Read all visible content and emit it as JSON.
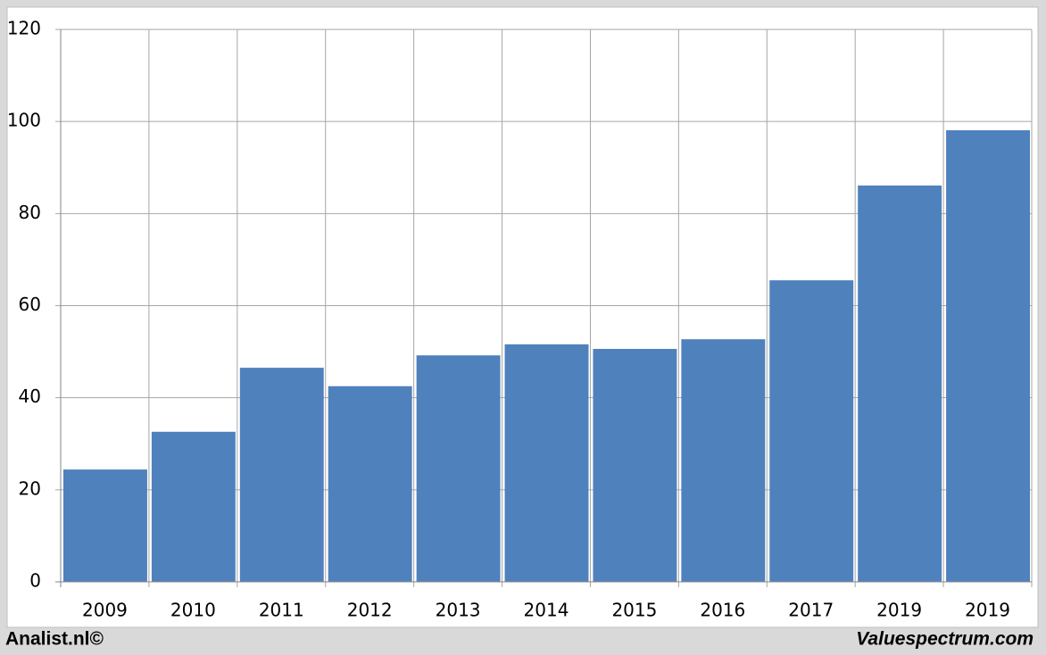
{
  "chart_data": {
    "type": "bar",
    "categories": [
      "2009",
      "2010",
      "2011",
      "2012",
      "2013",
      "2014",
      "2015",
      "2016",
      "2017",
      "2019",
      "2019"
    ],
    "values": [
      24.4,
      32.6,
      46.5,
      42.5,
      49.2,
      51.6,
      50.6,
      52.7,
      65.5,
      86.1,
      98.1
    ],
    "color": "#4f81bd",
    "ylim": [
      0,
      120
    ],
    "yticks": [
      0,
      20,
      40,
      60,
      80,
      100,
      120
    ],
    "grid": true
  },
  "footer": {
    "left": "Analist.nl©",
    "right": "Valuespectrum.com"
  }
}
